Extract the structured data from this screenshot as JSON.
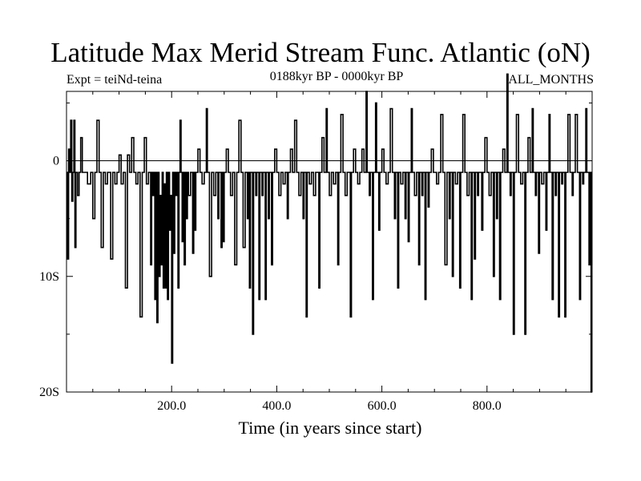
{
  "chart_data": {
    "type": "line",
    "title": "Latitude Max Merid Stream Func. Atlantic (oN)",
    "subtitle_left": "Expt = teiNd-teina",
    "subtitle_center": "0188kyr BP - 0000kyr BP",
    "subtitle_right": "ALL_MONTHS",
    "xlabel": "Time (in years since start)",
    "ylabel": "",
    "xlim": [
      0,
      1000
    ],
    "ylim": [
      -20,
      6
    ],
    "grid": false,
    "reference_line": 0,
    "x_ticks": [
      {
        "value": 200,
        "label": "200.0"
      },
      {
        "value": 400,
        "label": "400.0"
      },
      {
        "value": 600,
        "label": "600.0"
      },
      {
        "value": 800,
        "label": "800.0"
      }
    ],
    "y_ticks": [
      {
        "value": 0,
        "label": "0"
      },
      {
        "value": -10,
        "label": "10S"
      },
      {
        "value": -20,
        "label": "20S"
      }
    ],
    "series": [
      {
        "name": "latitude of max meridional stream function",
        "step": "post",
        "color": "#000000",
        "points": [
          [
            0,
            -1
          ],
          [
            2,
            -8.5
          ],
          [
            4,
            1
          ],
          [
            6,
            -1
          ],
          [
            8,
            3.5
          ],
          [
            10,
            -3.5
          ],
          [
            12,
            -1
          ],
          [
            14,
            3.5
          ],
          [
            16,
            -7.5
          ],
          [
            18,
            -1
          ],
          [
            21,
            -3
          ],
          [
            24,
            -1
          ],
          [
            27,
            2
          ],
          [
            30,
            -1
          ],
          [
            36,
            -1
          ],
          [
            40,
            -2
          ],
          [
            46,
            -1
          ],
          [
            50,
            -5
          ],
          [
            54,
            -1
          ],
          [
            58,
            3.5
          ],
          [
            62,
            -1
          ],
          [
            66,
            -7.5
          ],
          [
            70,
            -1
          ],
          [
            74,
            -2
          ],
          [
            78,
            -1
          ],
          [
            84,
            -8.5
          ],
          [
            88,
            -1
          ],
          [
            92,
            -2
          ],
          [
            96,
            -1
          ],
          [
            100,
            0.5
          ],
          [
            104,
            -2
          ],
          [
            108,
            -1
          ],
          [
            112,
            -11
          ],
          [
            116,
            0.5
          ],
          [
            120,
            -1
          ],
          [
            124,
            2
          ],
          [
            128,
            -1
          ],
          [
            132,
            -2
          ],
          [
            136,
            -1
          ],
          [
            140,
            -13.5
          ],
          [
            144,
            -1
          ],
          [
            148,
            2
          ],
          [
            152,
            -2
          ],
          [
            156,
            -1
          ],
          [
            160,
            -9
          ],
          [
            162,
            -1
          ],
          [
            164,
            -3
          ],
          [
            166,
            -1
          ],
          [
            168,
            -12
          ],
          [
            170,
            -1
          ],
          [
            172,
            -14
          ],
          [
            174,
            -1
          ],
          [
            176,
            -10
          ],
          [
            178,
            -3
          ],
          [
            180,
            -9
          ],
          [
            182,
            -1
          ],
          [
            184,
            -11
          ],
          [
            186,
            -2
          ],
          [
            188,
            -11
          ],
          [
            190,
            -1
          ],
          [
            192,
            -12
          ],
          [
            194,
            -1
          ],
          [
            196,
            -6
          ],
          [
            198,
            -3
          ],
          [
            200,
            -17.5
          ],
          [
            202,
            -1
          ],
          [
            204,
            -8
          ],
          [
            206,
            -1
          ],
          [
            208,
            -3
          ],
          [
            210,
            -1
          ],
          [
            212,
            -11
          ],
          [
            214,
            -1
          ],
          [
            216,
            3.5
          ],
          [
            218,
            -1
          ],
          [
            220,
            -7
          ],
          [
            222,
            -1
          ],
          [
            224,
            -9
          ],
          [
            226,
            -1
          ],
          [
            228,
            -5
          ],
          [
            230,
            -1
          ],
          [
            232,
            -3
          ],
          [
            236,
            -1
          ],
          [
            240,
            -8
          ],
          [
            242,
            -1
          ],
          [
            244,
            -6
          ],
          [
            246,
            -1
          ],
          [
            250,
            1
          ],
          [
            254,
            -1
          ],
          [
            258,
            -2
          ],
          [
            262,
            -1
          ],
          [
            266,
            4.5
          ],
          [
            268,
            -1
          ],
          [
            272,
            -10
          ],
          [
            276,
            -1
          ],
          [
            280,
            -3
          ],
          [
            284,
            -1
          ],
          [
            288,
            -5
          ],
          [
            290,
            -1
          ],
          [
            294,
            -7.5
          ],
          [
            296,
            -1
          ],
          [
            298,
            -7
          ],
          [
            300,
            -1
          ],
          [
            304,
            1
          ],
          [
            308,
            -1
          ],
          [
            312,
            -3
          ],
          [
            316,
            -1
          ],
          [
            320,
            -9
          ],
          [
            324,
            -1
          ],
          [
            328,
            3.5
          ],
          [
            332,
            -1
          ],
          [
            336,
            -7.5
          ],
          [
            340,
            -1
          ],
          [
            344,
            -5
          ],
          [
            346,
            -1
          ],
          [
            348,
            -11
          ],
          [
            350,
            -1
          ],
          [
            354,
            -15
          ],
          [
            356,
            -1
          ],
          [
            360,
            -3
          ],
          [
            362,
            -1
          ],
          [
            366,
            -12
          ],
          [
            368,
            -1
          ],
          [
            372,
            -3
          ],
          [
            374,
            -1
          ],
          [
            378,
            -12
          ],
          [
            380,
            -1
          ],
          [
            384,
            -5
          ],
          [
            386,
            -1
          ],
          [
            390,
            -9
          ],
          [
            392,
            -1
          ],
          [
            396,
            1
          ],
          [
            400,
            -1
          ],
          [
            404,
            -3
          ],
          [
            408,
            -1
          ],
          [
            412,
            -2
          ],
          [
            416,
            -1
          ],
          [
            420,
            -5
          ],
          [
            422,
            -1
          ],
          [
            426,
            1
          ],
          [
            430,
            -1
          ],
          [
            434,
            3.5
          ],
          [
            438,
            -1
          ],
          [
            442,
            -3
          ],
          [
            446,
            -1
          ],
          [
            450,
            -5
          ],
          [
            452,
            -1
          ],
          [
            456,
            -13.5
          ],
          [
            458,
            -1
          ],
          [
            462,
            -2
          ],
          [
            466,
            -1
          ],
          [
            470,
            -3
          ],
          [
            474,
            -1
          ],
          [
            480,
            -11
          ],
          [
            482,
            -1
          ],
          [
            486,
            2
          ],
          [
            490,
            -1
          ],
          [
            494,
            4.5
          ],
          [
            496,
            -1
          ],
          [
            500,
            -3
          ],
          [
            504,
            -1
          ],
          [
            508,
            -2
          ],
          [
            512,
            -1
          ],
          [
            516,
            -9
          ],
          [
            518,
            -1
          ],
          [
            522,
            4
          ],
          [
            526,
            -1
          ],
          [
            530,
            -3
          ],
          [
            534,
            -1
          ],
          [
            540,
            -13.5
          ],
          [
            542,
            -1
          ],
          [
            546,
            1
          ],
          [
            550,
            -1
          ],
          [
            554,
            -2
          ],
          [
            558,
            -1
          ],
          [
            562,
            1
          ],
          [
            566,
            -1
          ],
          [
            570,
            6
          ],
          [
            572,
            -1
          ],
          [
            576,
            -3
          ],
          [
            578,
            -1
          ],
          [
            582,
            -12
          ],
          [
            584,
            -1
          ],
          [
            588,
            5
          ],
          [
            590,
            -1
          ],
          [
            594,
            -6
          ],
          [
            596,
            -1
          ],
          [
            600,
            1
          ],
          [
            604,
            -1
          ],
          [
            608,
            -2
          ],
          [
            612,
            -1
          ],
          [
            616,
            4.5
          ],
          [
            620,
            -1
          ],
          [
            624,
            -5
          ],
          [
            626,
            -1
          ],
          [
            630,
            -11
          ],
          [
            632,
            -1
          ],
          [
            636,
            -2
          ],
          [
            640,
            -1
          ],
          [
            644,
            -5
          ],
          [
            646,
            -1
          ],
          [
            650,
            -7
          ],
          [
            652,
            -1
          ],
          [
            656,
            4.5
          ],
          [
            658,
            -1
          ],
          [
            662,
            -3
          ],
          [
            666,
            -1
          ],
          [
            670,
            -9
          ],
          [
            672,
            -1
          ],
          [
            676,
            -3
          ],
          [
            678,
            -1
          ],
          [
            682,
            -12
          ],
          [
            684,
            -1
          ],
          [
            688,
            -4
          ],
          [
            690,
            -1
          ],
          [
            694,
            1
          ],
          [
            698,
            -1
          ],
          [
            704,
            -2
          ],
          [
            708,
            -1
          ],
          [
            712,
            4
          ],
          [
            716,
            -1
          ],
          [
            720,
            -9
          ],
          [
            724,
            -1
          ],
          [
            728,
            -5
          ],
          [
            730,
            -1
          ],
          [
            734,
            -10
          ],
          [
            736,
            -1
          ],
          [
            740,
            -2
          ],
          [
            744,
            -1
          ],
          [
            748,
            -11
          ],
          [
            750,
            -1
          ],
          [
            754,
            4
          ],
          [
            758,
            -1
          ],
          [
            762,
            -3
          ],
          [
            766,
            -1
          ],
          [
            770,
            -12
          ],
          [
            772,
            -1
          ],
          [
            776,
            -8.5
          ],
          [
            778,
            -1
          ],
          [
            782,
            -3
          ],
          [
            784,
            -1
          ],
          [
            790,
            -6
          ],
          [
            792,
            -1
          ],
          [
            796,
            2
          ],
          [
            800,
            -1
          ],
          [
            804,
            -3
          ],
          [
            808,
            -1
          ],
          [
            812,
            -10
          ],
          [
            814,
            -1
          ],
          [
            818,
            -5
          ],
          [
            820,
            -1
          ],
          [
            824,
            -12
          ],
          [
            826,
            -1
          ],
          [
            830,
            1
          ],
          [
            834,
            -1
          ],
          [
            838,
            7.5
          ],
          [
            840,
            -1
          ],
          [
            844,
            -3
          ],
          [
            846,
            -1
          ],
          [
            850,
            -15
          ],
          [
            852,
            -1
          ],
          [
            856,
            4
          ],
          [
            860,
            -1
          ],
          [
            864,
            -2
          ],
          [
            868,
            -1
          ],
          [
            872,
            -15
          ],
          [
            874,
            -1
          ],
          [
            878,
            2
          ],
          [
            882,
            -1
          ],
          [
            886,
            4.5
          ],
          [
            888,
            -1
          ],
          [
            892,
            -3
          ],
          [
            894,
            -1
          ],
          [
            898,
            -8
          ],
          [
            900,
            -1
          ],
          [
            904,
            -2
          ],
          [
            908,
            -1
          ],
          [
            912,
            -6
          ],
          [
            914,
            -1
          ],
          [
            918,
            4
          ],
          [
            920,
            -1
          ],
          [
            924,
            -12
          ],
          [
            926,
            -1
          ],
          [
            930,
            -3
          ],
          [
            932,
            -1
          ],
          [
            936,
            -13.5
          ],
          [
            938,
            -1
          ],
          [
            942,
            -2
          ],
          [
            944,
            -1
          ],
          [
            948,
            -13.5
          ],
          [
            950,
            -1
          ],
          [
            954,
            4
          ],
          [
            958,
            -1
          ],
          [
            962,
            -3
          ],
          [
            964,
            -1
          ],
          [
            968,
            4
          ],
          [
            972,
            -1
          ],
          [
            976,
            -12
          ],
          [
            978,
            -1
          ],
          [
            982,
            -2
          ],
          [
            984,
            -1
          ],
          [
            988,
            4.5
          ],
          [
            990,
            -1
          ],
          [
            994,
            -9
          ],
          [
            996,
            -1
          ],
          [
            998,
            -20
          ],
          [
            1000,
            -20
          ]
        ]
      }
    ]
  }
}
